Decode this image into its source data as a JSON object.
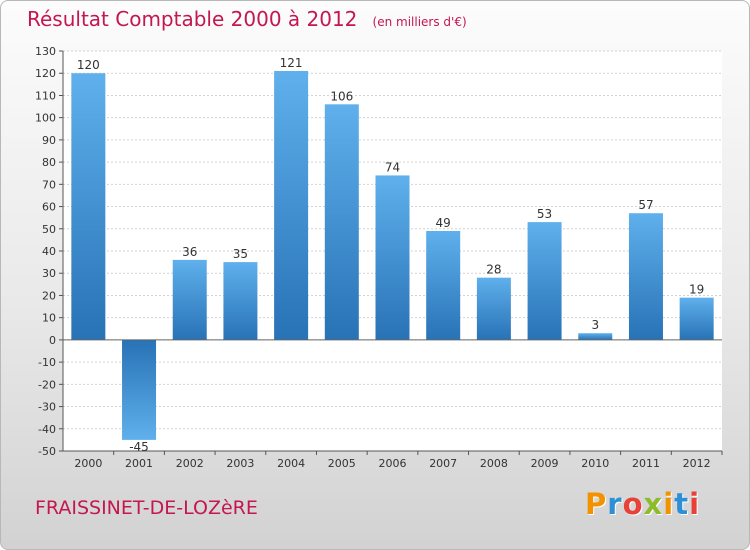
{
  "chart_data": {
    "type": "bar",
    "title": "Résultat Comptable 2000 à 2012",
    "subtitle": "(en milliers d'€)",
    "categories": [
      "2000",
      "2001",
      "2002",
      "2003",
      "2004",
      "2005",
      "2006",
      "2007",
      "2008",
      "2009",
      "2010",
      "2011",
      "2012"
    ],
    "values": [
      120,
      -45,
      36,
      35,
      121,
      106,
      74,
      49,
      28,
      53,
      3,
      57,
      19
    ],
    "value_labels": [
      "120",
      "-45",
      "36",
      "35",
      "121",
      "106",
      "74",
      "49",
      "28",
      "53",
      "3",
      "57",
      "19"
    ],
    "ylim": [
      -50,
      130
    ],
    "yticks": [
      -50,
      -40,
      -30,
      -20,
      -10,
      0,
      10,
      20,
      30,
      40,
      50,
      60,
      70,
      80,
      90,
      100,
      110,
      120,
      130
    ],
    "grid": true,
    "xlabel": "",
    "ylabel": "",
    "bar_color": "#3d8fd4",
    "bar_color_light": "#5fb0ec",
    "bar_color_dark": "#2872b6"
  },
  "footer": {
    "commune": "FRAISSINET-DE-LOZèRE",
    "logo_letters": [
      "P",
      "r",
      "o",
      "x",
      "i",
      "t",
      "i"
    ],
    "logo_colors": [
      "#f39200",
      "#2d8fd6",
      "#e8413a",
      "#8dbb2c",
      "#f39200",
      "#2d8fd6",
      "#e8413a"
    ]
  },
  "theme": {
    "accent": "#c4174f"
  }
}
